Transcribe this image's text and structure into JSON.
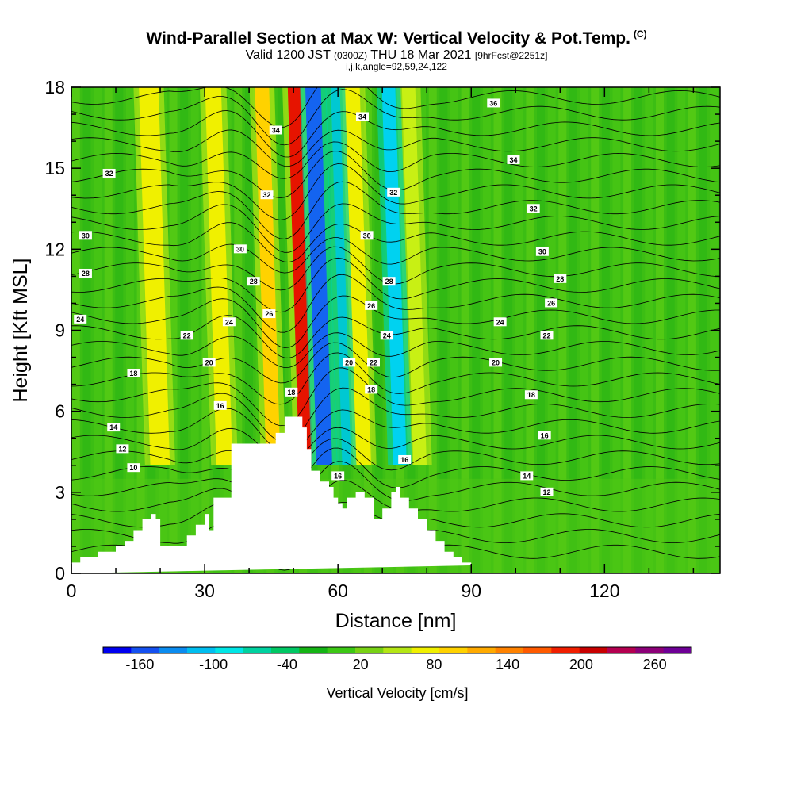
{
  "title": {
    "main": "Wind-Parallel Section at Max W: Vertical Velocity & Pot.Temp.",
    "tag": "(C)",
    "valid_prefix": "Valid 1200 JST",
    "valid_utc": "(0300Z)",
    "valid_date": "THU 18 Mar 2021",
    "forecast": "[9hrFcst@2251z]",
    "indices": "i,j,k,angle=92,59,24,122"
  },
  "chart_data": {
    "type": "heatmap",
    "xlabel": "Distance [nm]",
    "ylabel": "Height [Kft MSL]",
    "xlim": [
      0,
      146
    ],
    "ylim": [
      0,
      18
    ],
    "xticks": [
      0,
      30,
      60,
      90,
      120
    ],
    "yticks": [
      0,
      3,
      6,
      9,
      12,
      15,
      18
    ],
    "colorbar": {
      "label": "Vertical Velocity [cm/s]",
      "tick_labels": [
        "-160",
        "-100",
        "-40",
        "20",
        "80",
        "140",
        "200",
        "260"
      ],
      "colors": [
        "#0000f0",
        "#1450f0",
        "#0a8cf0",
        "#00bef0",
        "#00e6e6",
        "#00d2a0",
        "#00c864",
        "#14b414",
        "#3cc814",
        "#78d214",
        "#b4e614",
        "#f0f000",
        "#ffd200",
        "#ffaa00",
        "#ff8200",
        "#ff5a00",
        "#f01e00",
        "#c80000",
        "#b40050",
        "#8c0078",
        "#6e0096"
      ]
    },
    "updraft_columns": [
      {
        "x": 19,
        "w": 4.4,
        "name": "updraft",
        "color": "#f0f000"
      },
      {
        "x": 33.5,
        "w": 3.6,
        "name": "updraft",
        "color": "#f0f000"
      },
      {
        "x": 44.5,
        "w": 3.2,
        "name": "updraft",
        "color": "#ffd200"
      },
      {
        "x": 51.8,
        "w": 3.0,
        "name": "max updraft",
        "color": "#e61400"
      },
      {
        "x": 64.5,
        "w": 4.0,
        "name": "updraft",
        "color": "#f0f000"
      },
      {
        "x": 77.5,
        "w": 3.0,
        "name": "updraft",
        "color": "#c8f014"
      }
    ],
    "downdraft_columns": [
      {
        "x": 56,
        "w": 3.5,
        "name": "max downdraft",
        "color": "#1464f0"
      },
      {
        "x": 73,
        "w": 3.0,
        "name": "downdraft",
        "color": "#00d2f0"
      },
      {
        "x": 61,
        "w": 2.0,
        "name": "downdraft",
        "color": "#00c8d2"
      }
    ],
    "terrain": {
      "x": [
        0,
        2,
        2,
        6,
        6,
        10,
        10,
        12,
        12,
        14,
        14,
        16,
        16,
        18,
        18,
        19,
        19,
        20,
        20,
        26,
        26,
        28,
        28,
        30,
        30,
        31,
        31,
        32,
        32,
        36,
        36,
        46,
        46,
        48,
        48,
        52,
        52,
        53,
        53,
        54,
        54,
        56,
        56,
        58,
        58,
        59,
        59,
        60,
        60,
        61,
        61,
        62,
        62,
        64,
        64,
        66,
        66,
        68,
        68,
        70,
        70,
        72,
        72,
        73,
        73,
        74,
        74,
        76,
        76,
        78,
        78,
        80,
        80,
        82,
        82,
        84,
        84,
        86,
        86,
        88,
        88,
        90,
        90,
        92,
        92,
        146
      ],
      "y": [
        0.4,
        0.4,
        0.6,
        0.6,
        0.8,
        0.8,
        1.0,
        1.0,
        1.2,
        1.2,
        1.6,
        1.6,
        2.0,
        2.0,
        2.2,
        2.2,
        2.0,
        2.0,
        1.0,
        1.0,
        1.4,
        1.4,
        1.8,
        1.8,
        2.2,
        2.2,
        1.6,
        1.6,
        2.8,
        2.8,
        4.8,
        4.8,
        5.2,
        5.2,
        5.8,
        5.8,
        5.4,
        5.4,
        4.6,
        4.6,
        3.8,
        3.8,
        3.4,
        3.4,
        3.2,
        3.2,
        2.8,
        2.8,
        2.6,
        2.6,
        2.4,
        2.4,
        2.8,
        2.8,
        3.0,
        3.0,
        2.8,
        2.8,
        2.0,
        2.0,
        2.4,
        2.4,
        3.0,
        3.0,
        3.2,
        3.2,
        2.8,
        2.8,
        2.4,
        2.4,
        2.0,
        2.0,
        1.6,
        1.6,
        1.2,
        1.2,
        0.8,
        0.8,
        0.6,
        0.6,
        0.4,
        0.4,
        0.3,
        0.3,
        0.3
      ]
    },
    "isentrope_labels": [
      {
        "text": "32",
        "x": 8.5,
        "y": 14.8
      },
      {
        "text": "30",
        "x": 3.2,
        "y": 12.5
      },
      {
        "text": "28",
        "x": 3.2,
        "y": 11.1
      },
      {
        "text": "24",
        "x": 2.0,
        "y": 9.4
      },
      {
        "text": "18",
        "x": 14.0,
        "y": 7.4
      },
      {
        "text": "14",
        "x": 9.5,
        "y": 5.4
      },
      {
        "text": "12",
        "x": 11.5,
        "y": 4.6
      },
      {
        "text": "10",
        "x": 14.0,
        "y": 3.9
      },
      {
        "text": "34",
        "x": 46.0,
        "y": 16.4
      },
      {
        "text": "32",
        "x": 44.0,
        "y": 14.0
      },
      {
        "text": "30",
        "x": 38.0,
        "y": 12.0
      },
      {
        "text": "28",
        "x": 41.0,
        "y": 10.8
      },
      {
        "text": "26",
        "x": 44.5,
        "y": 9.6
      },
      {
        "text": "24",
        "x": 35.5,
        "y": 9.3
      },
      {
        "text": "22",
        "x": 26.0,
        "y": 8.8
      },
      {
        "text": "20",
        "x": 31.0,
        "y": 7.8
      },
      {
        "text": "16",
        "x": 33.5,
        "y": 6.2
      },
      {
        "text": "18",
        "x": 49.5,
        "y": 6.7
      },
      {
        "text": "34",
        "x": 65.5,
        "y": 16.9
      },
      {
        "text": "32",
        "x": 72.5,
        "y": 14.1
      },
      {
        "text": "30",
        "x": 66.5,
        "y": 12.5
      },
      {
        "text": "28",
        "x": 71.5,
        "y": 10.8
      },
      {
        "text": "26",
        "x": 67.5,
        "y": 9.9
      },
      {
        "text": "24",
        "x": 71.0,
        "y": 8.8
      },
      {
        "text": "20",
        "x": 62.5,
        "y": 7.8
      },
      {
        "text": "22",
        "x": 68.0,
        "y": 7.8
      },
      {
        "text": "18",
        "x": 67.5,
        "y": 6.8
      },
      {
        "text": "16",
        "x": 60.0,
        "y": 3.6
      },
      {
        "text": "16",
        "x": 75.0,
        "y": 4.2
      },
      {
        "text": "36",
        "x": 95.0,
        "y": 17.4
      },
      {
        "text": "34",
        "x": 99.5,
        "y": 15.3
      },
      {
        "text": "32",
        "x": 104.0,
        "y": 13.5
      },
      {
        "text": "30",
        "x": 106.0,
        "y": 11.9
      },
      {
        "text": "28",
        "x": 110.0,
        "y": 10.9
      },
      {
        "text": "26",
        "x": 108.0,
        "y": 10.0
      },
      {
        "text": "24",
        "x": 96.5,
        "y": 9.3
      },
      {
        "text": "22",
        "x": 107.0,
        "y": 8.8
      },
      {
        "text": "20",
        "x": 95.5,
        "y": 7.8
      },
      {
        "text": "18",
        "x": 103.5,
        "y": 6.6
      },
      {
        "text": "16",
        "x": 106.5,
        "y": 5.1
      },
      {
        "text": "14",
        "x": 102.5,
        "y": 3.6
      },
      {
        "text": "12",
        "x": 107.0,
        "y": 3.0
      }
    ]
  }
}
